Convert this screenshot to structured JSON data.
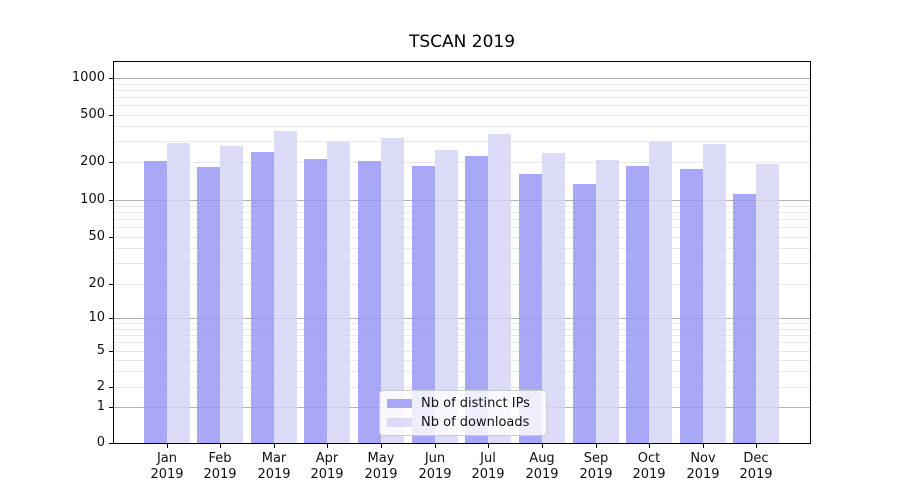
{
  "chart_data": {
    "type": "bar",
    "title": "TSCAN 2019",
    "categories": [
      "Jan",
      "Feb",
      "Mar",
      "Apr",
      "May",
      "Jun",
      "Jul",
      "Aug",
      "Sep",
      "Oct",
      "Nov",
      "Dec"
    ],
    "category_year": "2019",
    "series": [
      {
        "name": "Nb of distinct IPs",
        "color": "#a8a8f6",
        "values": [
          205,
          182,
          243,
          211,
          203,
          187,
          226,
          160,
          135,
          187,
          175,
          112
        ]
      },
      {
        "name": "Nb of downloads",
        "color": "#dcdcf9",
        "values": [
          291,
          272,
          364,
          295,
          318,
          254,
          343,
          239,
          209,
          296,
          282,
          193
        ]
      }
    ],
    "yscale": "symlog",
    "yticks": [
      0,
      1,
      2,
      5,
      10,
      20,
      50,
      100,
      200,
      500,
      1000
    ],
    "ylim": [
      0,
      1400
    ],
    "xlabel": "",
    "ylabel": "",
    "grid": true,
    "legend_position": "lower center",
    "colors": {
      "axis": "#000000",
      "grid_major": "#b2b2b2",
      "grid_minor": "#e8e8e8",
      "background": "#ffffff"
    }
  }
}
